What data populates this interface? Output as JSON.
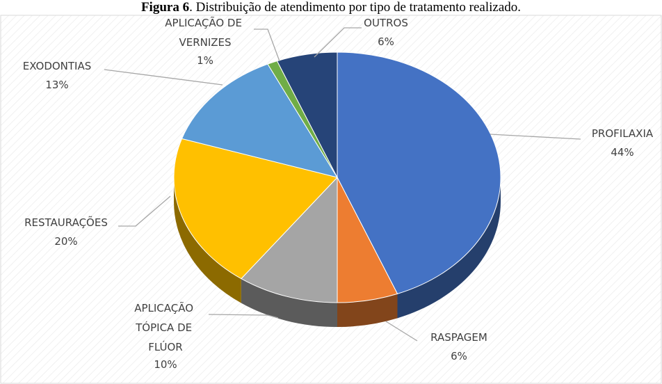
{
  "chart_data": {
    "type": "pie3d",
    "title_prefix": "Figura 6",
    "title": ". Distribuição de atendimento por tipo de tratamento realizado.",
    "categories": [
      "PROFILAXIA",
      "RASPAGEM",
      "APLICAÇÃO TÓPICA DE FLÚOR",
      "RESTAURAÇÕES",
      "EXODONTIAS",
      "APLICAÇÃO DE VERNIZES",
      "OUTROS"
    ],
    "values": [
      44,
      6,
      10,
      20,
      13,
      1,
      6
    ],
    "value_labels": [
      "44%",
      "6%",
      "10%",
      "20%",
      "13%",
      "1%",
      "6%"
    ],
    "colors": [
      "#4472c4",
      "#ed7d31",
      "#a5a5a5",
      "#ffc000",
      "#5b9bd5",
      "#70ad47",
      "#264478"
    ]
  }
}
